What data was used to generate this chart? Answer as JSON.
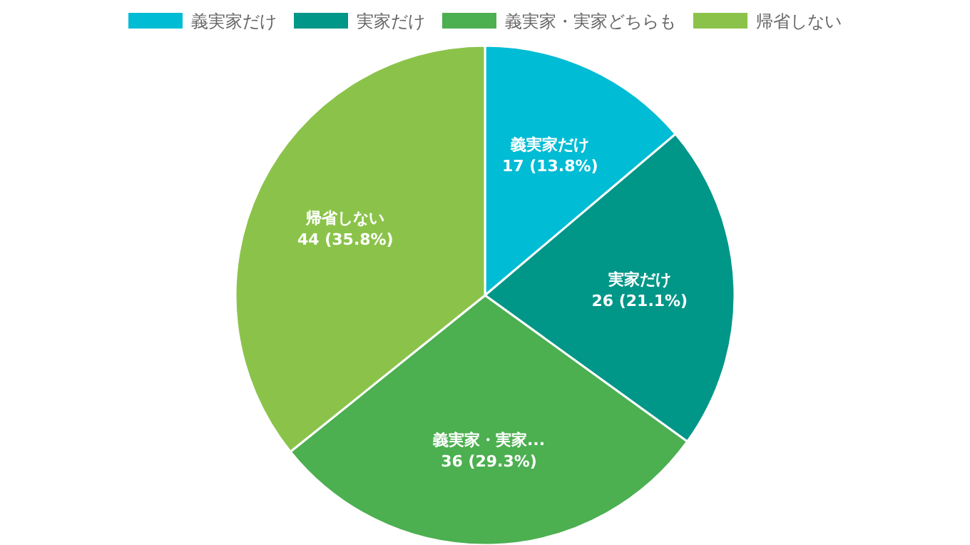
{
  "chart_data": {
    "type": "pie",
    "categories": [
      "義実家だけ",
      "実家だけ",
      "義実家・実家どちらも",
      "帰省しない"
    ],
    "values": [
      17,
      26,
      36,
      44
    ],
    "colors": [
      "#00bcd4",
      "#009688",
      "#4caf50",
      "#8bc34a"
    ],
    "value_labels": [
      "義実家だけ\n17 (13.8%)",
      "実家だけ\n26 (21.1%)",
      "義実家・実家...\n36 (29.3%)",
      "帰省しない\n44 (35.8%)"
    ],
    "legend": "top"
  }
}
